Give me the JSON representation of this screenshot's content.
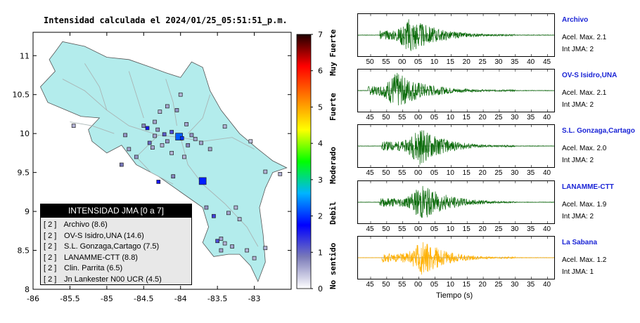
{
  "map": {
    "title": "Intensidad calculada el 2024/01/25_05:51:51_p.m.",
    "x_ticks": [
      "-86",
      "-85.5",
      "-85",
      "-84.5",
      "-84",
      "-83.5",
      "-83"
    ],
    "y_ticks": [
      "11",
      "10.5",
      "10",
      "9.5",
      "9",
      "8.5",
      "8"
    ],
    "x_range": [
      -86,
      -82.5
    ],
    "y_range": [
      8,
      11.3
    ],
    "stations": [
      {
        "lon": -84.02,
        "lat": 9.96,
        "level": 2.2,
        "big": true
      },
      {
        "lon": -83.98,
        "lat": 9.94,
        "level": 2.0,
        "big": false
      },
      {
        "lon": -83.7,
        "lat": 9.39,
        "level": 1.9,
        "big": true
      },
      {
        "lon": -84.12,
        "lat": 10.02,
        "level": 1.2
      },
      {
        "lon": -84.22,
        "lat": 9.99,
        "level": 1.1
      },
      {
        "lon": -84.31,
        "lat": 10.05,
        "level": 0.7
      },
      {
        "lon": -84.35,
        "lat": 9.97,
        "level": 0.6
      },
      {
        "lon": -84.42,
        "lat": 9.88,
        "level": 1.0
      },
      {
        "lon": -84.45,
        "lat": 10.07,
        "level": 1.6
      },
      {
        "lon": -84.5,
        "lat": 10.1,
        "level": 0.8
      },
      {
        "lon": -84.05,
        "lat": 10.3,
        "level": 0.7
      },
      {
        "lon": -84.0,
        "lat": 10.5,
        "level": 0.5
      },
      {
        "lon": -84.18,
        "lat": 10.35,
        "level": 0.6
      },
      {
        "lon": -84.28,
        "lat": 10.28,
        "level": 0.5
      },
      {
        "lon": -83.92,
        "lat": 10.12,
        "level": 0.6
      },
      {
        "lon": -83.85,
        "lat": 9.98,
        "level": 0.7
      },
      {
        "lon": -83.9,
        "lat": 9.85,
        "level": 0.8
      },
      {
        "lon": -83.8,
        "lat": 9.93,
        "level": 0.6
      },
      {
        "lon": -84.75,
        "lat": 9.98,
        "level": 0.7
      },
      {
        "lon": -84.8,
        "lat": 9.6,
        "level": 0.9
      },
      {
        "lon": -85.45,
        "lat": 10.1,
        "level": 0.5
      },
      {
        "lon": -83.4,
        "lat": 10.09,
        "level": 0.5
      },
      {
        "lon": -83.05,
        "lat": 9.9,
        "level": 0.4
      },
      {
        "lon": -84.3,
        "lat": 9.38,
        "level": 1.6
      },
      {
        "lon": -84.1,
        "lat": 9.45,
        "level": 0.8
      },
      {
        "lon": -83.65,
        "lat": 9.05,
        "level": 0.7
      },
      {
        "lon": -83.25,
        "lat": 9.05,
        "level": 0.5
      },
      {
        "lon": -83.35,
        "lat": 8.98,
        "level": 0.6
      },
      {
        "lon": -83.2,
        "lat": 8.9,
        "level": 0.5
      },
      {
        "lon": -83.55,
        "lat": 8.94,
        "level": 1.3
      },
      {
        "lon": -83.45,
        "lat": 8.65,
        "level": 0.6
      },
      {
        "lon": -83.4,
        "lat": 8.59,
        "level": 0.5
      },
      {
        "lon": -83.5,
        "lat": 8.62,
        "level": 1.2
      },
      {
        "lon": -83.3,
        "lat": 8.55,
        "level": 0.6
      },
      {
        "lon": -83.1,
        "lat": 8.5,
        "level": 0.5
      },
      {
        "lon": -83.45,
        "lat": 8.5,
        "level": 0.6
      },
      {
        "lon": -83.0,
        "lat": 8.4,
        "level": 0.5
      },
      {
        "lon": -82.85,
        "lat": 8.53,
        "level": 0.5
      },
      {
        "lon": -82.85,
        "lat": 9.51,
        "level": 0.5
      },
      {
        "lon": -82.65,
        "lat": 9.48,
        "level": 0.5
      },
      {
        "lon": -84.7,
        "lat": 9.8,
        "level": 0.6
      },
      {
        "lon": -84.6,
        "lat": 9.7,
        "level": 0.7
      },
      {
        "lon": -84.38,
        "lat": 9.82,
        "level": 0.6
      },
      {
        "lon": -84.25,
        "lat": 9.85,
        "level": 0.5
      },
      {
        "lon": -83.6,
        "lat": 9.8,
        "level": 0.6
      },
      {
        "lon": -84.12,
        "lat": 9.75,
        "level": 0.5
      },
      {
        "lon": -84.35,
        "lat": 10.15,
        "level": 0.6
      },
      {
        "lon": -83.95,
        "lat": 9.7,
        "level": 0.5
      },
      {
        "lon": -83.72,
        "lat": 9.88,
        "level": 0.6
      },
      {
        "lon": -84.18,
        "lat": 9.9,
        "level": 0.7
      }
    ]
  },
  "legend": {
    "title": "INTENSIDAD JMA [0 a 7]",
    "items": [
      {
        "level": "[ 2 ]",
        "label": "Archivo (8.6)"
      },
      {
        "level": "[ 2 ]",
        "label": "OV-S Isidro,UNA (14.6)"
      },
      {
        "level": "[ 2 ]",
        "label": "S.L. Gonzaga,Cartago (7.5)"
      },
      {
        "level": "[ 2 ]",
        "label": "LANAMME-CTT (8.8)"
      },
      {
        "level": "[ 2 ]",
        "label": "Clin. Parrita (6.5)"
      },
      {
        "level": "[ 2 ]",
        "label": "Jn Lankester N00 UCR (4.5)"
      }
    ]
  },
  "colorbar": {
    "ticks": [
      "0",
      "1",
      "2",
      "3",
      "4",
      "5",
      "6",
      "7"
    ],
    "labels": [
      "No sentido",
      "Debil",
      "Moderado",
      "Fuerte",
      "Muy Fuerte"
    ],
    "colors": [
      "#ffffff",
      "#7a7ab8",
      "#0000ff",
      "#00b4ff",
      "#00ff00",
      "#ffff00",
      "#ff7f00",
      "#ff0000",
      "#200000"
    ]
  },
  "waveforms": {
    "xlabel": "Tiempo (s)",
    "green": "#0a6b0a",
    "orange": "#ffb000",
    "panels": [
      {
        "name": "Archivo",
        "acel": "Acel. Max. 2.1",
        "int": "Int JMA: 2",
        "color": "green",
        "ticks": [
          "50",
          "55",
          "00",
          "05",
          "10",
          "15",
          "20",
          "25",
          "30",
          "35",
          "40",
          "45"
        ],
        "first_tick": 50,
        "onset": 0.11,
        "peak": 0.27,
        "amp": 0.95,
        "decay": 0.55,
        "seed": 3
      },
      {
        "name": "OV-S Isidro,UNA",
        "acel": "Acel. Max. 2.1",
        "int": "Int JMA: 2",
        "color": "green",
        "ticks": [
          "45",
          "50",
          "55",
          "00",
          "05",
          "10",
          "15",
          "20",
          "25",
          "30",
          "35",
          "40"
        ],
        "first_tick": 45,
        "onset": 0.05,
        "peak": 0.2,
        "amp": 0.95,
        "decay": 0.6,
        "seed": 7
      },
      {
        "name": "S.L. Gonzaga,Cartago",
        "acel": "Acel. Max. 2.0",
        "int": "Int JMA: 2",
        "color": "green",
        "ticks": [
          "45",
          "50",
          "55",
          "00",
          "05",
          "10",
          "15",
          "20",
          "25",
          "30",
          "35",
          "40"
        ],
        "first_tick": 45,
        "onset": 0.12,
        "peak": 0.32,
        "amp": 1.0,
        "decay": 0.5,
        "seed": 11
      },
      {
        "name": "LANAMME-CTT",
        "acel": "Acel. Max. 1.9",
        "int": "Int JMA: 2",
        "color": "green",
        "ticks": [
          "45",
          "50",
          "55",
          "00",
          "05",
          "10",
          "15",
          "20",
          "25",
          "30",
          "35",
          "40"
        ],
        "first_tick": 45,
        "onset": 0.11,
        "peak": 0.33,
        "amp": 0.95,
        "decay": 0.55,
        "seed": 19
      },
      {
        "name": "La Sabana",
        "acel": "Acel. Max. 1.2",
        "int": "Int JMA: 1",
        "color": "orange",
        "ticks": [
          "45",
          "50",
          "55",
          "00",
          "05",
          "10",
          "15",
          "20",
          "25",
          "30",
          "35",
          "40"
        ],
        "first_tick": 45,
        "onset": 0.12,
        "peak": 0.33,
        "amp": 0.95,
        "decay": 0.5,
        "seed": 23
      }
    ]
  }
}
